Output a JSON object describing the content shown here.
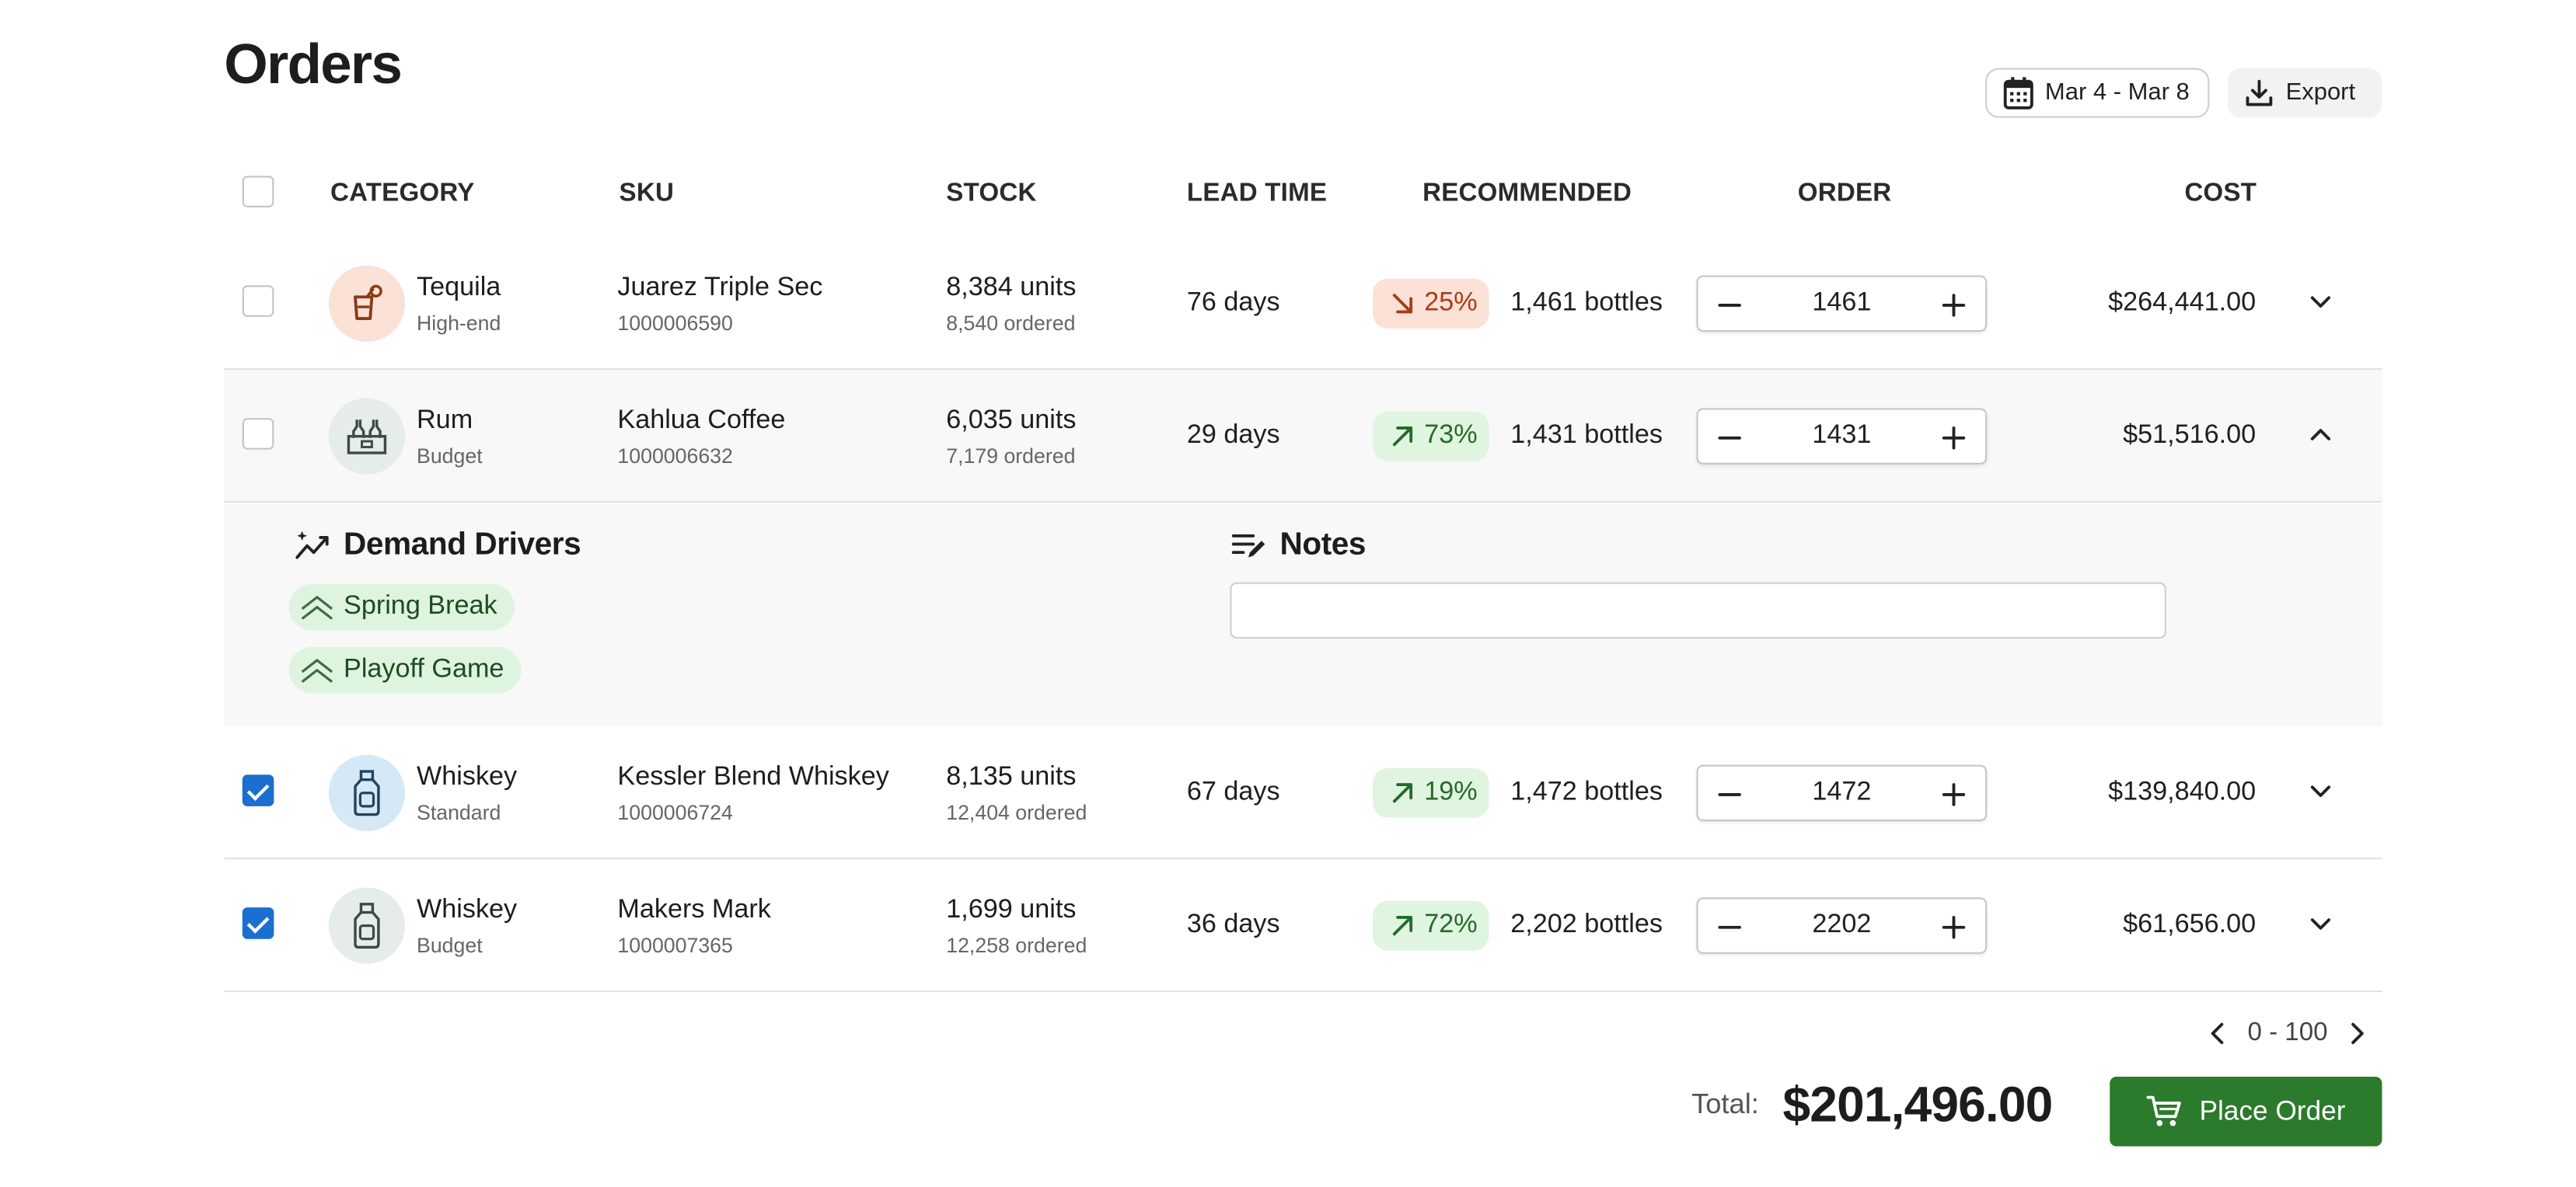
{
  "page": {
    "title": "Orders"
  },
  "header": {
    "date_range": "Mar 4 - Mar 8",
    "export_label": "Export"
  },
  "table": {
    "columns": {
      "category": "CATEGORY",
      "sku": "SKU",
      "stock": "STOCK",
      "lead_time": "LEAD TIME",
      "recommended": "RECOMMENDED",
      "order": "ORDER",
      "cost": "COST"
    },
    "rows": [
      {
        "checked": false,
        "category": "Tequila",
        "tier": "High-end",
        "sku_name": "Juarez Triple Sec",
        "sku_id": "1000006590",
        "stock": "8,384 units",
        "ordered": "8,540 ordered",
        "lead_time": "76 days",
        "trend": "down",
        "trend_pct": "25%",
        "recommended": "1,461 bottles",
        "order_qty": "1461",
        "cost": "$264,441.00",
        "expanded": false,
        "icon": "cocktail-icon"
      },
      {
        "checked": false,
        "category": "Rum",
        "tier": "Budget",
        "sku_name": "Kahlua Coffee",
        "sku_id": "1000006632",
        "stock": "6,035 units",
        "ordered": "7,179 ordered",
        "lead_time": "29 days",
        "trend": "up",
        "trend_pct": "73%",
        "recommended": "1,431 bottles",
        "order_qty": "1431",
        "cost": "$51,516.00",
        "expanded": true,
        "icon": "bottle-crate-icon"
      },
      {
        "checked": true,
        "category": "Whiskey",
        "tier": "Standard",
        "sku_name": "Kessler Blend Whiskey",
        "sku_id": "1000006724",
        "stock": "8,135 units",
        "ordered": "12,404 ordered",
        "lead_time": "67 days",
        "trend": "up",
        "trend_pct": "19%",
        "recommended": "1,472 bottles",
        "order_qty": "1472",
        "cost": "$139,840.00",
        "expanded": false,
        "icon": "whiskey-bottle-icon"
      },
      {
        "checked": true,
        "category": "Whiskey",
        "tier": "Budget",
        "sku_name": "Makers Mark",
        "sku_id": "1000007365",
        "stock": "1,699 units",
        "ordered": "12,258 ordered",
        "lead_time": "36 days",
        "trend": "up",
        "trend_pct": "72%",
        "recommended": "2,202 bottles",
        "order_qty": "2202",
        "cost": "$61,656.00",
        "expanded": false,
        "icon": "whiskey-bottle-icon"
      }
    ]
  },
  "details": {
    "demand_title": "Demand Drivers",
    "drivers": [
      "Spring Break",
      "Playoff Game"
    ],
    "notes_title": "Notes",
    "notes_value": ""
  },
  "footer": {
    "pagination": "0 - 100",
    "total_label": "Total:",
    "total_value": "$201,496.00",
    "place_order_label": "Place Order"
  },
  "colors": {
    "accent_green": "#2c7a2c",
    "checkbox_blue": "#1a6fd0",
    "up_bg": "#e0f5e0",
    "down_bg": "#fbe1d6"
  }
}
